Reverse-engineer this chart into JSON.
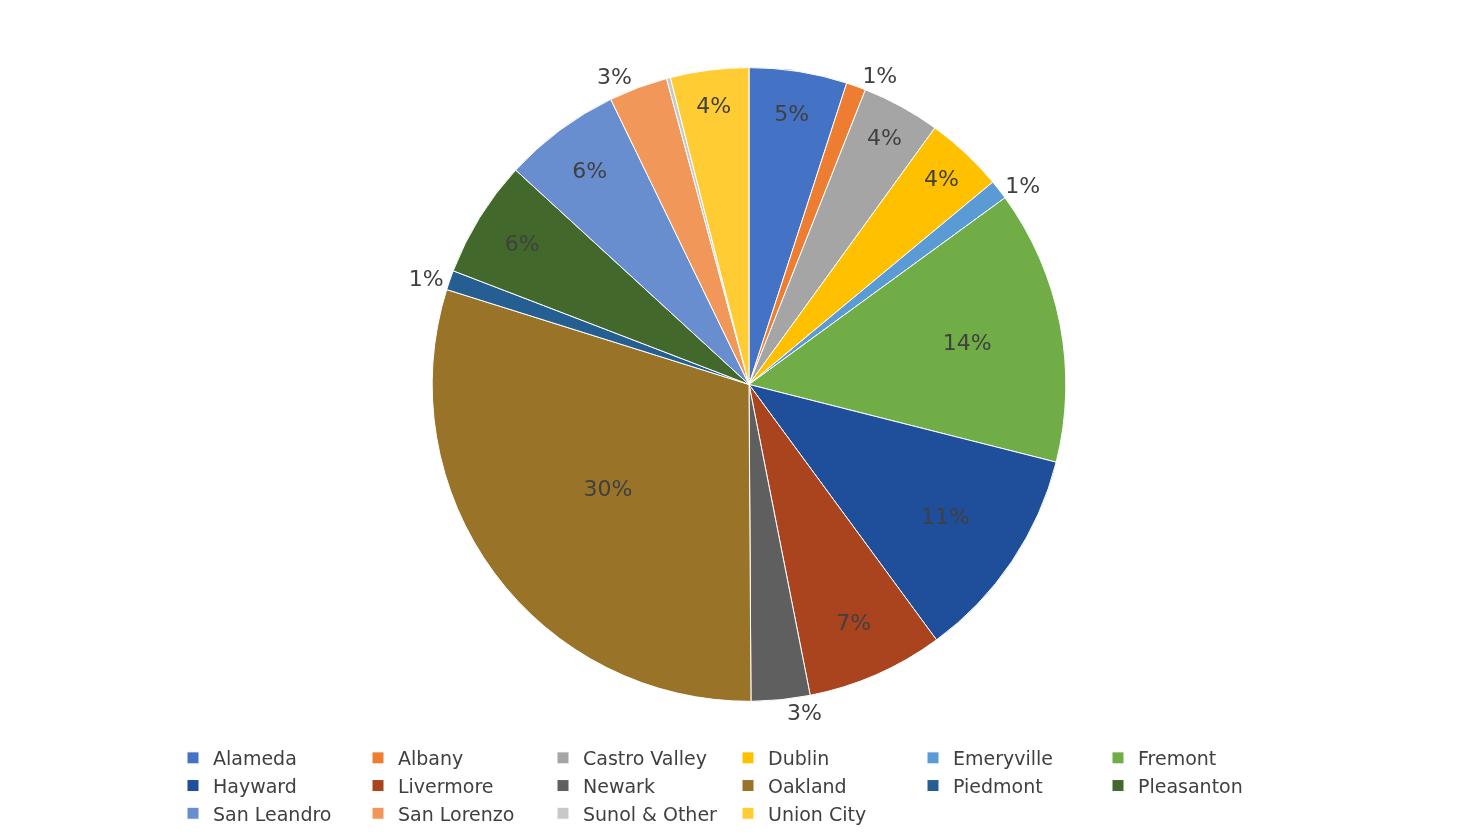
{
  "chart_data": {
    "type": "pie",
    "categories": [
      "Alameda",
      "Albany",
      "Castro Valley",
      "Dublin",
      "Emeryville",
      "Fremont",
      "Hayward",
      "Livermore",
      "Newark",
      "Oakland",
      "Piedmont",
      "Pleasanton",
      "San Leandro",
      "San Lorenzo",
      "Sunol & Other",
      "Union City"
    ],
    "values": [
      5,
      1,
      4,
      4,
      1,
      14,
      11,
      7,
      3,
      30,
      1,
      6,
      6,
      3,
      0.2,
      4
    ],
    "value_labels": [
      "5%",
      "1%",
      "4%",
      "4%",
      "1%",
      "14%",
      "11%",
      "7%",
      "3%",
      "30%",
      "1%",
      "6%",
      "6%",
      "3%",
      null,
      "4%"
    ],
    "colors": [
      "#4472c4",
      "#ed7d31",
      "#a5a5a5",
      "#ffc000",
      "#5b9bd5",
      "#70ad47",
      "#1f4e9a",
      "#a9441f",
      "#5f5f5f",
      "#997328",
      "#255e91",
      "#43682b",
      "#698ed0",
      "#f1975a",
      "#c8c8c8",
      "#ffcd33"
    ],
    "legend": "bottom"
  }
}
